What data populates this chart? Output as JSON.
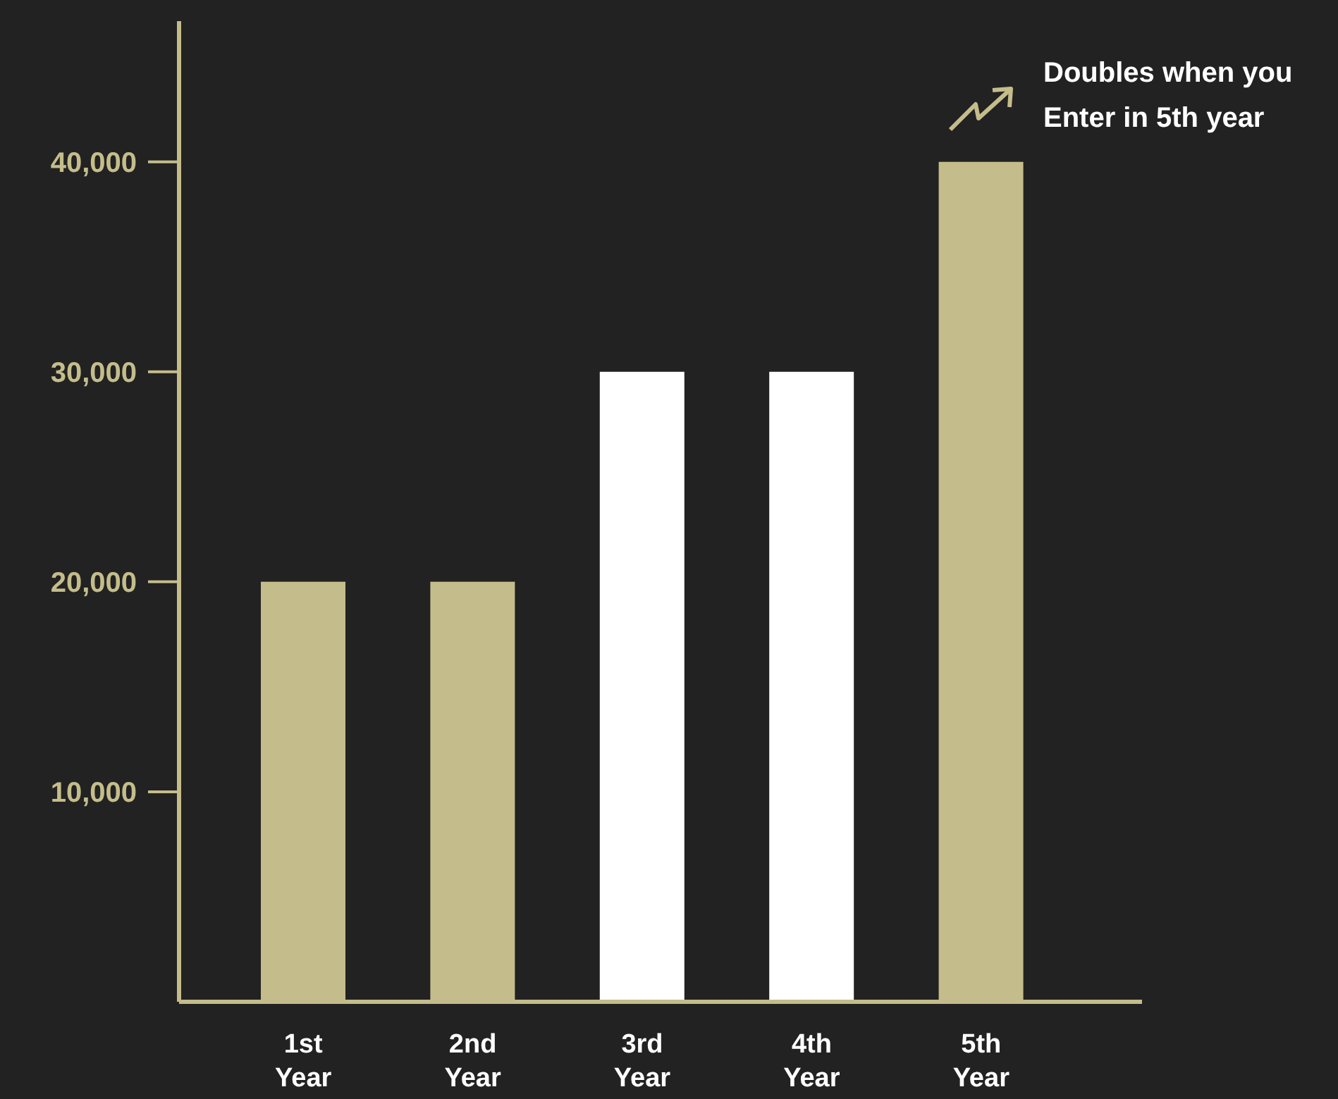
{
  "chart_data": {
    "type": "bar",
    "categories": [
      "1st Year",
      "2nd Year",
      "3rd Year",
      "4th Year",
      "5th Year"
    ],
    "values": [
      20000,
      20000,
      30000,
      30000,
      40000
    ],
    "colors": [
      "#c4bd8b",
      "#c4bd8b",
      "#ffffff",
      "#ffffff",
      "#c4bd8b"
    ],
    "ylim": [
      0,
      46700
    ],
    "yticks": [
      {
        "value": 10000,
        "label": "10,000"
      },
      {
        "value": 20000,
        "label": "20,000"
      },
      {
        "value": 30000,
        "label": "30,000"
      },
      {
        "value": 40000,
        "label": "40,000"
      }
    ],
    "annotations": [
      "Doubles when you Enter in 5th year"
    ],
    "grid": false
  }
}
